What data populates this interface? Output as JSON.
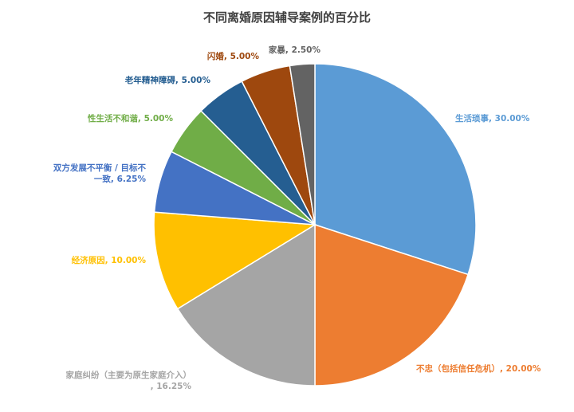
{
  "chart_data": {
    "type": "pie",
    "title": "不同离婚原因辅导案例的百分比",
    "slices": [
      {
        "label": "生活琐事",
        "value": 30.0,
        "display": "30.00%",
        "color": "#5B9BD5"
      },
      {
        "label": "不忠（包括信任危机）",
        "value": 20.0,
        "display": "20.00%",
        "color": "#ED7D31"
      },
      {
        "label": "家庭纠纷（主要为原生家庭介入）",
        "value": 16.25,
        "display": "16.25%",
        "color": "#A5A5A5"
      },
      {
        "label": "经济原因",
        "value": 10.0,
        "display": "10.00%",
        "color": "#FFC000"
      },
      {
        "label": "双方发展不平衡 / 目标不一致",
        "value": 6.25,
        "display": "6.25%",
        "color": "#4472C4"
      },
      {
        "label": "性生活不和谐",
        "value": 5.0,
        "display": "5.00%",
        "color": "#70AD47"
      },
      {
        "label": "老年精神障碍",
        "value": 5.0,
        "display": "5.00%",
        "color": "#255E91"
      },
      {
        "label": "闪婚",
        "value": 5.0,
        "display": "5.00%",
        "color": "#9E480E"
      },
      {
        "label": "家暴",
        "value": 2.5,
        "display": "2.50%",
        "color": "#636363"
      }
    ],
    "legend": "none",
    "data_labels": "outside"
  }
}
